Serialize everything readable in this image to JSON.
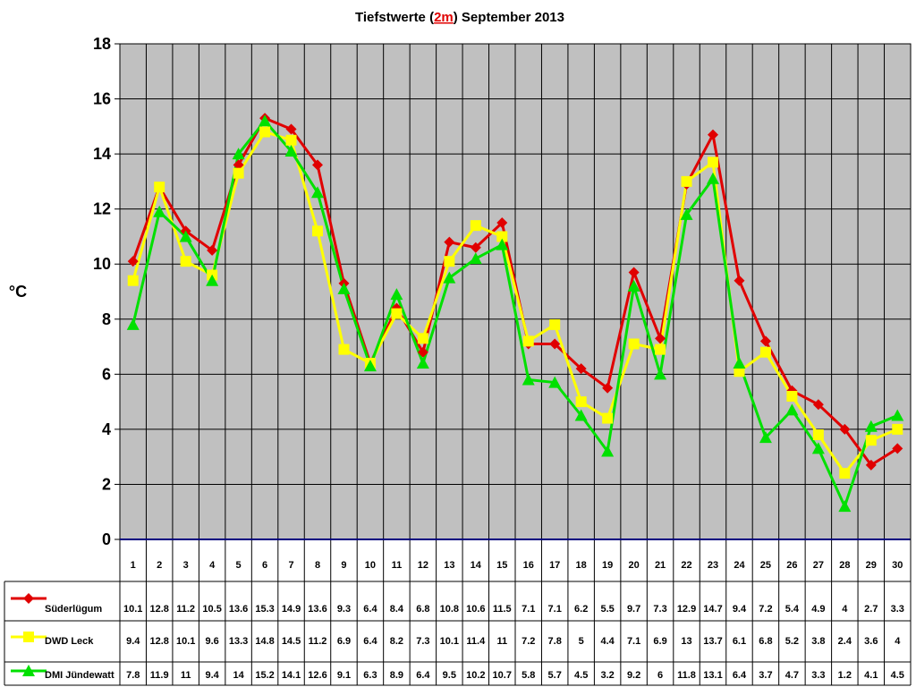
{
  "chart_data": {
    "type": "line",
    "title_parts": [
      "Tiefstwerte (",
      "2m",
      ") September 2013"
    ],
    "ylabel": "°C",
    "ylim": [
      0,
      18
    ],
    "yticks": [
      0,
      2,
      4,
      6,
      8,
      10,
      12,
      14,
      16,
      18
    ],
    "grid": true,
    "legend_placement": "bottom-left table",
    "categories": [
      "1",
      "2",
      "3",
      "4",
      "5",
      "6",
      "7",
      "8",
      "9",
      "10",
      "11",
      "12",
      "13",
      "14",
      "15",
      "16",
      "17",
      "18",
      "19",
      "20",
      "21",
      "22",
      "23",
      "24",
      "25",
      "26",
      "27",
      "28",
      "29",
      "30"
    ],
    "series": [
      {
        "name": "Süderlügum",
        "color": "#e00000",
        "marker": "diamond",
        "values": [
          10.1,
          12.8,
          11.2,
          10.5,
          13.6,
          15.3,
          14.9,
          13.6,
          9.3,
          6.4,
          8.4,
          6.8,
          10.8,
          10.6,
          11.5,
          7.1,
          7.1,
          6.2,
          5.5,
          9.7,
          7.3,
          12.9,
          14.7,
          9.4,
          7.2,
          5.4,
          4.9,
          4,
          2.7,
          3.3
        ]
      },
      {
        "name": "DWD Leck",
        "color": "#ffff00",
        "marker": "square",
        "values": [
          9.4,
          12.8,
          10.1,
          9.6,
          13.3,
          14.8,
          14.5,
          11.2,
          6.9,
          6.4,
          8.2,
          7.3,
          10.1,
          11.4,
          11,
          7.2,
          7.8,
          5,
          4.4,
          7.1,
          6.9,
          13,
          13.7,
          6.1,
          6.8,
          5.2,
          3.8,
          2.4,
          3.6,
          4
        ]
      },
      {
        "name": "DMI Jündewatt",
        "color": "#00e000",
        "marker": "triangle",
        "values": [
          7.8,
          11.9,
          11,
          9.4,
          14,
          15.2,
          14.1,
          12.6,
          9.1,
          6.3,
          8.9,
          6.4,
          9.5,
          10.2,
          10.7,
          5.8,
          5.7,
          4.5,
          3.2,
          9.2,
          6,
          11.8,
          13.1,
          6.4,
          3.7,
          4.7,
          3.3,
          1.2,
          4.1,
          4.5
        ]
      }
    ]
  }
}
